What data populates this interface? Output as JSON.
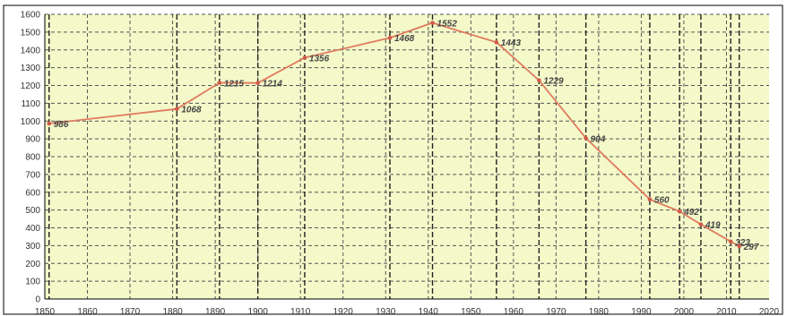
{
  "chart_data": {
    "type": "line",
    "title": "",
    "xlabel": "",
    "ylabel": "",
    "xlim": [
      1850,
      2020
    ],
    "ylim": [
      0,
      1600
    ],
    "x_ticks": [
      "1850",
      "1860",
      "1870",
      "1880",
      "1890",
      "1900",
      "1910",
      "1920",
      "1930",
      "1940",
      "1950",
      "1960",
      "1970",
      "1980",
      "1990",
      "2000",
      "2010",
      "2020"
    ],
    "y_ticks": [
      "0",
      "100",
      "200",
      "300",
      "400",
      "500",
      "600",
      "700",
      "800",
      "900",
      "1000",
      "1100",
      "1200",
      "1300",
      "1400",
      "1500",
      "1600"
    ],
    "grid": true,
    "legend": "none",
    "series": [
      {
        "x": [
          1851,
          1881,
          1891,
          1900,
          1911,
          1931,
          1941,
          1956,
          1966,
          1977,
          1992,
          1999,
          2004,
          2011,
          2013
        ],
        "values": [
          986,
          1068,
          1215,
          1214,
          1356,
          1468,
          1552,
          1443,
          1229,
          904,
          560,
          492,
          419,
          323,
          297
        ],
        "labels": [
          "986",
          "1068",
          "1215",
          "1214",
          "1356",
          "1468",
          "1552",
          "1443",
          "1229",
          "904",
          "560",
          "492",
          "419",
          "323",
          "297"
        ]
      }
    ],
    "colors": {
      "plot_background": "#f4f9c9",
      "line": "#e07a5f",
      "marker": "#d05a4a",
      "grid": "#555555",
      "frame": "#000000"
    }
  }
}
